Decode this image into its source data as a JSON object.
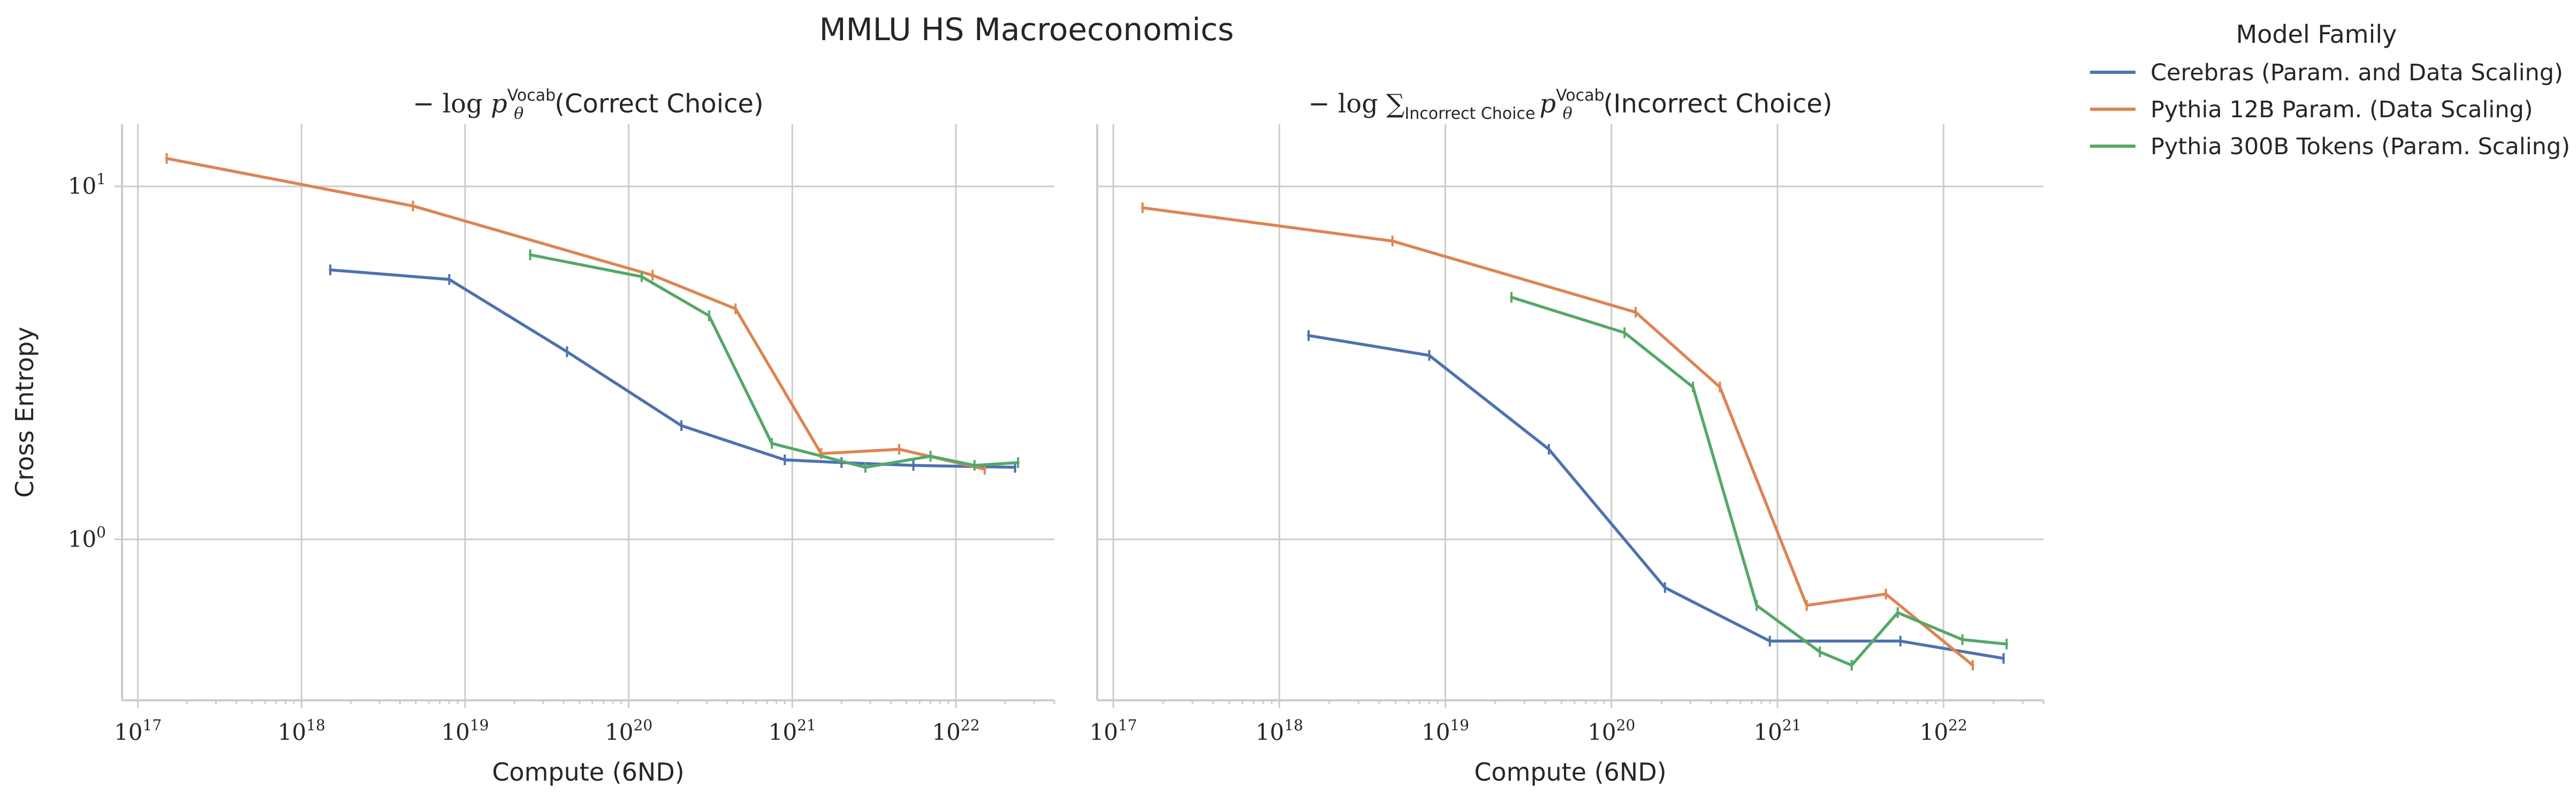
{
  "figure": {
    "title": "MMLU HS Macroeconomics",
    "legend_title": "Model Family",
    "legend_placement": "outside-right-top"
  },
  "colors": {
    "cerebras": "#4c72b0",
    "pythia12b": "#dd8452",
    "pythia300b": "#55a868"
  },
  "chart_data": [
    {
      "type": "line",
      "title_parts": {
        "prefix": "− log ",
        "var": "p",
        "sub": "θ",
        "sup": "Vocab",
        "suffix": "(Correct Choice)"
      },
      "xlabel": "Compute (6ND)",
      "ylabel": "Cross Entropy",
      "xscale": "log",
      "yscale": "log",
      "xlim": [
        8e+16,
        4e+22
      ],
      "ylim": [
        0.35,
        15.0
      ],
      "xticks": [
        {
          "base": "10",
          "exp": "17",
          "value": 1e+17
        },
        {
          "base": "10",
          "exp": "18",
          "value": 1e+18
        },
        {
          "base": "10",
          "exp": "19",
          "value": 1e+19
        },
        {
          "base": "10",
          "exp": "20",
          "value": 1e+20
        },
        {
          "base": "10",
          "exp": "21",
          "value": 1e+21
        },
        {
          "base": "10",
          "exp": "22",
          "value": 1e+22
        }
      ],
      "yticks": [
        {
          "base": "10",
          "exp": "0",
          "value": 1
        },
        {
          "base": "10",
          "exp": "1",
          "value": 10
        }
      ],
      "grid": true,
      "series": [
        {
          "name": "Cerebras (Param. and Data Scaling)",
          "color_key": "cerebras",
          "x": [
            1.5e+18,
            8e+18,
            4.2e+19,
            2.1e+20,
            9e+20,
            2e+21,
            5.5e+21,
            2.3e+22
          ],
          "y": [
            5.8,
            5.45,
            3.4,
            2.1,
            1.68,
            1.65,
            1.62,
            1.6
          ]
        },
        {
          "name": "Pythia 12B Param. (Data Scaling)",
          "color_key": "pythia12b",
          "x": [
            1.5e+17,
            4.8e+18,
            1.4e+20,
            4.5e+20,
            1.5e+21,
            4.5e+21,
            1.5e+22
          ],
          "y": [
            12.0,
            8.8,
            5.6,
            4.5,
            1.75,
            1.8,
            1.58
          ]
        },
        {
          "name": "Pythia 300B Tokens (Param. Scaling)",
          "color_key": "pythia300b",
          "x": [
            2.5e+19,
            1.2e+20,
            3.1e+20,
            7.5e+20,
            2.8e+21,
            7e+21,
            1.3e+22,
            2.4e+22
          ],
          "y": [
            6.4,
            5.55,
            4.3,
            1.87,
            1.6,
            1.72,
            1.62,
            1.65
          ]
        }
      ]
    },
    {
      "type": "line",
      "title_parts": {
        "prefix": "− log ",
        "sum": "∑",
        "sum_sub": "Incorrect Choice",
        "var": "p",
        "sub": "θ",
        "sup": "Vocab",
        "suffix": "(Incorrect Choice)"
      },
      "xlabel": "Compute (6ND)",
      "ylabel": "",
      "xscale": "log",
      "yscale": "log",
      "xlim": [
        8e+16,
        4e+22
      ],
      "ylim": [
        0.35,
        15.0
      ],
      "xticks": [
        {
          "base": "10",
          "exp": "17",
          "value": 1e+17
        },
        {
          "base": "10",
          "exp": "18",
          "value": 1e+18
        },
        {
          "base": "10",
          "exp": "19",
          "value": 1e+19
        },
        {
          "base": "10",
          "exp": "20",
          "value": 1e+20
        },
        {
          "base": "10",
          "exp": "21",
          "value": 1e+21
        },
        {
          "base": "10",
          "exp": "22",
          "value": 1e+22
        }
      ],
      "yticks": [],
      "grid": true,
      "series": [
        {
          "name": "Cerebras (Param. and Data Scaling)",
          "color_key": "cerebras",
          "x": [
            1.5e+18,
            8e+18,
            4.2e+19,
            2.1e+20,
            9e+20,
            5.5e+21,
            2.3e+22
          ],
          "y": [
            3.78,
            3.32,
            1.8,
            0.73,
            0.515,
            0.515,
            0.46
          ]
        },
        {
          "name": "Pythia 12B Param. (Data Scaling)",
          "color_key": "pythia12b",
          "x": [
            1.5e+17,
            4.8e+18,
            1.4e+20,
            4.5e+20,
            1.5e+21,
            4.5e+21,
            1.5e+22
          ],
          "y": [
            8.7,
            7.0,
            4.4,
            2.7,
            0.65,
            0.7,
            0.44
          ]
        },
        {
          "name": "Pythia 300B Tokens (Param. Scaling)",
          "color_key": "pythia300b",
          "x": [
            2.5e+19,
            1.2e+20,
            3.1e+20,
            7.5e+20,
            1.8e+21,
            2.8e+21,
            5.3e+21,
            1.3e+22,
            2.4e+22
          ],
          "y": [
            4.85,
            3.85,
            2.7,
            0.65,
            0.48,
            0.44,
            0.62,
            0.52,
            0.505
          ]
        }
      ]
    }
  ]
}
